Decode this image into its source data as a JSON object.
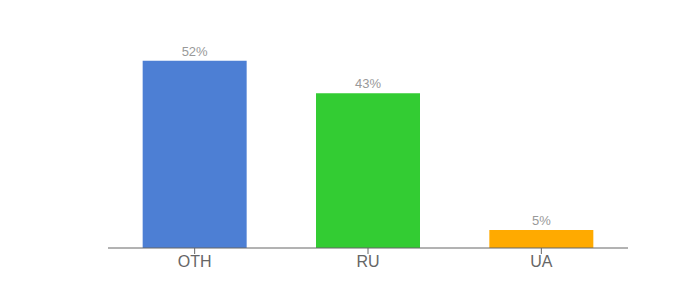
{
  "chart_data": {
    "type": "bar",
    "categories": [
      "OTH",
      "RU",
      "UA"
    ],
    "values": [
      52,
      43,
      5
    ],
    "value_labels": [
      "52%",
      "43%",
      "5%"
    ],
    "colors": [
      "#4d7fd4",
      "#33cc33",
      "#ffaa00"
    ],
    "ylim": [
      0,
      60
    ],
    "data_labels": true,
    "tick_labels": "x"
  }
}
